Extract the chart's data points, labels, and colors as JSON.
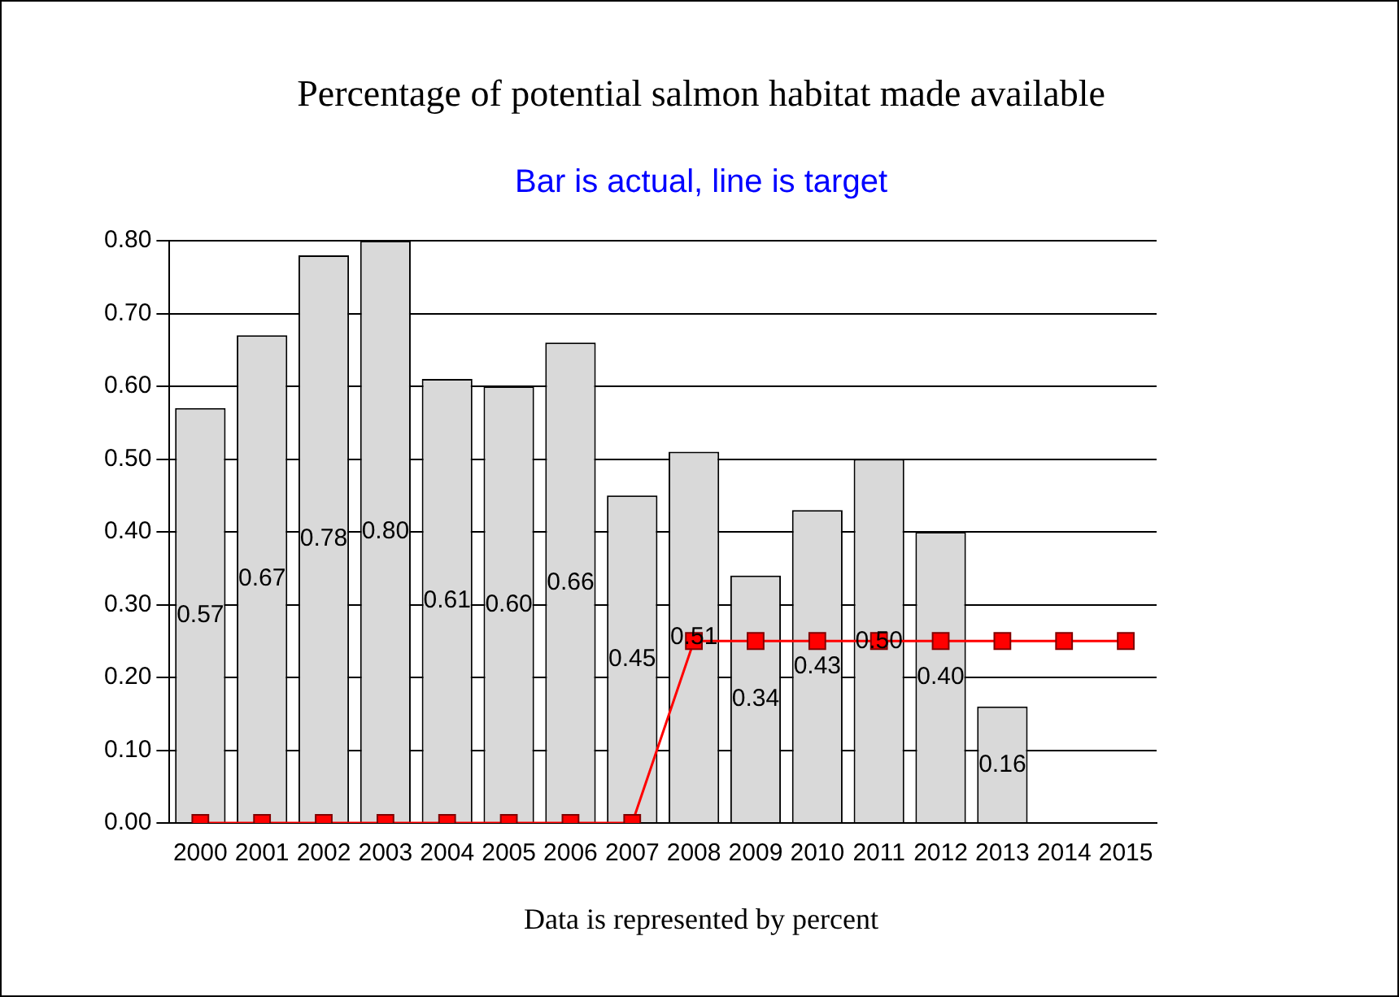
{
  "chart_data": {
    "type": "bar",
    "title": "Percentage of potential salmon habitat made available",
    "subtitle": "Bar is actual, line is target",
    "categories": [
      "2000",
      "2001",
      "2002",
      "2003",
      "2004",
      "2005",
      "2006",
      "2007",
      "2008",
      "2009",
      "2010",
      "2011",
      "2012",
      "2013",
      "2014",
      "2015"
    ],
    "series": [
      {
        "color": "#d9d9d9",
        "values": [
          0.57,
          0.67,
          0.78,
          0.8,
          0.61,
          0.6,
          0.66,
          0.45,
          0.51,
          0.34,
          0.43,
          0.5,
          0.4,
          0.16,
          null,
          null
        ],
        "value_labels": [
          "0.57",
          "0.67",
          "0.78",
          "0.80",
          "0.61",
          "0.60",
          "0.66",
          "0.45",
          "0.51",
          "0.34",
          "0.43",
          "0.50",
          "0.40",
          "0.16",
          null,
          null
        ]
      },
      {
        "type": "line",
        "color": "#ff0000",
        "marker": "square",
        "values": [
          0,
          0,
          0,
          0,
          0,
          0,
          0,
          0,
          0.25,
          0.25,
          0.25,
          0.25,
          0.25,
          0.25,
          0.25,
          0.25
        ]
      }
    ],
    "ylim": [
      0,
      0.8
    ],
    "yticks": [
      {
        "value": 0,
        "label": "0.00"
      },
      {
        "value": 0.1,
        "label": "0.10"
      },
      {
        "value": 0.2,
        "label": "0.20"
      },
      {
        "value": 0.3,
        "label": "0.30"
      },
      {
        "value": 0.4,
        "label": "0.40"
      },
      {
        "value": 0.5,
        "label": "0.50"
      },
      {
        "value": 0.6,
        "label": "0.60"
      },
      {
        "value": 0.7,
        "label": "0.70"
      },
      {
        "value": 0.8,
        "label": "0.80"
      }
    ],
    "grid": "y",
    "legend": false,
    "annotations": [
      "Data is represented by percent"
    ]
  }
}
